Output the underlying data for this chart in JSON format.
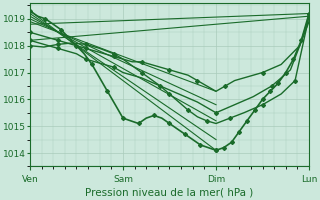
{
  "background_color": "#cce8dc",
  "grid_color": "#aaccbb",
  "line_color": "#1a6b2a",
  "marker": "D",
  "marker_size": 2.0,
  "xlabel": "Pression niveau de la mer( hPa )",
  "xlabel_fontsize": 7.5,
  "tick_fontsize": 6.5,
  "ylim": [
    1013.5,
    1019.6
  ],
  "yticks": [
    1014,
    1015,
    1016,
    1017,
    1018,
    1019
  ],
  "x_labels": [
    "Ven",
    "Sam",
    "Dim",
    "Lun"
  ],
  "x_positions": [
    0.0,
    1.0,
    2.0,
    3.0
  ],
  "xlim": [
    0.0,
    3.0
  ],
  "series_simple": [
    {
      "points": [
        [
          0.0,
          1019.3
        ],
        [
          2.0,
          1014.1
        ]
      ],
      "lw": 0.8,
      "marker": false
    },
    {
      "points": [
        [
          0.0,
          1019.2
        ],
        [
          2.0,
          1014.5
        ]
      ],
      "lw": 0.8,
      "marker": false
    },
    {
      "points": [
        [
          0.0,
          1019.1
        ],
        [
          2.0,
          1015.2
        ]
      ],
      "lw": 0.8,
      "marker": false
    },
    {
      "points": [
        [
          0.0,
          1019.0
        ],
        [
          2.0,
          1015.8
        ]
      ],
      "lw": 0.8,
      "marker": false
    },
    {
      "points": [
        [
          0.0,
          1018.9
        ],
        [
          2.0,
          1016.3
        ]
      ],
      "lw": 0.8,
      "marker": false
    },
    {
      "points": [
        [
          0.0,
          1018.8
        ],
        [
          3.0,
          1019.2
        ]
      ],
      "lw": 0.8,
      "marker": false
    },
    {
      "points": [
        [
          0.0,
          1018.2
        ],
        [
          3.0,
          1019.1
        ]
      ],
      "lw": 0.8,
      "marker": false
    }
  ],
  "main_series_ven_to_dim": {
    "x": [
      0.0,
      0.083,
      0.167,
      0.25,
      0.333,
      0.417,
      0.5,
      0.583,
      0.667,
      0.75,
      0.833,
      0.917,
      1.0,
      1.083,
      1.167,
      1.25,
      1.333,
      1.417,
      1.5,
      1.583,
      1.667,
      1.75,
      1.833,
      1.917,
      2.0
    ],
    "y": [
      1019.3,
      1019.1,
      1019.0,
      1018.8,
      1018.6,
      1018.3,
      1018.0,
      1017.7,
      1017.3,
      1016.8,
      1016.3,
      1015.8,
      1015.3,
      1015.2,
      1015.1,
      1015.3,
      1015.4,
      1015.3,
      1015.1,
      1014.9,
      1014.7,
      1014.5,
      1014.3,
      1014.2,
      1014.1
    ],
    "lw": 1.2,
    "markevery": 2
  },
  "main_series_dim_to_lun": {
    "x": [
      2.0,
      2.083,
      2.167,
      2.25,
      2.333,
      2.417,
      2.5,
      2.583,
      2.667,
      2.75,
      2.833,
      2.917,
      3.0
    ],
    "y": [
      1014.1,
      1014.2,
      1014.4,
      1014.8,
      1015.2,
      1015.6,
      1016.0,
      1016.3,
      1016.6,
      1017.0,
      1017.5,
      1018.2,
      1019.2
    ],
    "lw": 1.2,
    "markevery": 1
  },
  "extra_lines": [
    {
      "x": [
        0.0,
        0.1,
        0.2,
        0.3,
        0.4,
        0.5,
        0.6,
        0.7,
        0.8,
        0.9,
        1.0,
        1.1,
        1.2,
        1.3,
        1.4,
        1.5,
        1.6,
        1.7,
        1.8,
        1.9,
        2.0,
        2.1,
        2.2,
        2.3,
        2.5,
        2.7,
        2.9,
        3.0
      ],
      "y": [
        1018.5,
        1018.4,
        1018.3,
        1018.2,
        1018.1,
        1018.0,
        1017.9,
        1017.8,
        1017.7,
        1017.6,
        1017.5,
        1017.4,
        1017.4,
        1017.3,
        1017.2,
        1017.1,
        1017.0,
        1016.9,
        1016.7,
        1016.5,
        1016.3,
        1016.5,
        1016.7,
        1016.8,
        1017.0,
        1017.3,
        1018.0,
        1019.1
      ],
      "lw": 1.0,
      "markevery": 3
    },
    {
      "x": [
        0.0,
        0.1,
        0.2,
        0.3,
        0.4,
        0.5,
        0.6,
        0.7,
        0.8,
        0.9,
        1.0,
        1.2,
        1.4,
        1.6,
        1.8,
        2.0,
        2.2,
        2.4,
        2.6,
        2.8,
        3.0
      ],
      "y": [
        1018.2,
        1018.1,
        1018.0,
        1017.9,
        1017.8,
        1017.7,
        1017.5,
        1017.4,
        1017.3,
        1017.2,
        1017.0,
        1016.8,
        1016.5,
        1016.2,
        1015.9,
        1015.5,
        1015.8,
        1016.1,
        1016.5,
        1017.1,
        1018.9
      ],
      "lw": 1.0,
      "markevery": 3
    },
    {
      "x": [
        0.0,
        0.15,
        0.3,
        0.45,
        0.6,
        0.75,
        0.9,
        1.0,
        1.2,
        1.4,
        1.5,
        1.6,
        1.7,
        1.8,
        1.9,
        2.0,
        2.15,
        2.3,
        2.5,
        2.7,
        2.85,
        3.0
      ],
      "y": [
        1018.0,
        1017.95,
        1018.05,
        1018.1,
        1018.05,
        1017.9,
        1017.7,
        1017.5,
        1017.0,
        1016.5,
        1016.2,
        1015.9,
        1015.6,
        1015.35,
        1015.2,
        1015.1,
        1015.3,
        1015.5,
        1015.8,
        1016.2,
        1016.7,
        1019.1
      ],
      "lw": 1.0,
      "markevery": 2
    }
  ]
}
